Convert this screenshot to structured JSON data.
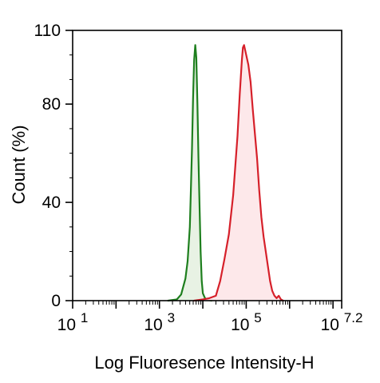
{
  "chart_data": {
    "type": "area",
    "xlabel": "Log Fluoresence Intensity-H",
    "ylabel": "Count  (%)",
    "x_scale": "log",
    "xlim": [
      10,
      15848932
    ],
    "ylim": [
      0,
      110
    ],
    "x_ticks": [
      {
        "value": 10,
        "base": "10",
        "exp": "1"
      },
      {
        "value": 1000,
        "base": "10",
        "exp": "3"
      },
      {
        "value": 100000,
        "base": "10",
        "exp": "5"
      },
      {
        "value": 15848932,
        "base": "10",
        "exp": "7.2"
      }
    ],
    "y_ticks": [
      {
        "value": 0,
        "label": "0"
      },
      {
        "value": 40,
        "label": "40"
      },
      {
        "value": 80,
        "label": "80"
      },
      {
        "value": 110,
        "label": "110"
      }
    ],
    "grid": false,
    "legend": "none",
    "series": [
      {
        "color": "#1e7f1e",
        "fill": "#e8f2e4",
        "x": [
          1585,
          2512,
          3162,
          3981,
          4467,
          5012,
          5309,
          5623,
          5957,
          6310,
          6683,
          7079,
          7499,
          7943,
          8414,
          8913,
          9441,
          10000,
          11220,
          12589,
          15849
        ],
        "y": [
          0,
          0.5,
          2.5,
          9,
          16,
          30,
          45,
          62,
          82,
          98,
          104,
          99,
          80,
          58,
          38,
          20,
          8,
          3,
          1,
          0.4,
          0
        ]
      },
      {
        "color": "#d6202a",
        "fill": "#fde8ea",
        "x": [
          6310,
          10000,
          14125,
          19953,
          25119,
          31623,
          39811,
          50119,
          56234,
          63096,
          70795,
          79433,
          84140,
          89125,
          100000,
          112202,
          125893,
          141254,
          158489,
          177828,
          199526,
          223872,
          251189,
          281838,
          316228,
          354813,
          398107,
          446684,
          501187,
          562341,
          630957,
          707946
        ],
        "y": [
          0,
          0.5,
          1,
          2,
          8,
          17,
          27,
          43,
          55,
          67,
          84,
          98,
          103,
          104,
          100,
          96,
          89,
          78,
          68,
          58,
          45,
          34,
          26,
          20,
          14,
          8,
          4,
          2,
          1,
          2,
          0.5,
          0
        ]
      }
    ]
  }
}
